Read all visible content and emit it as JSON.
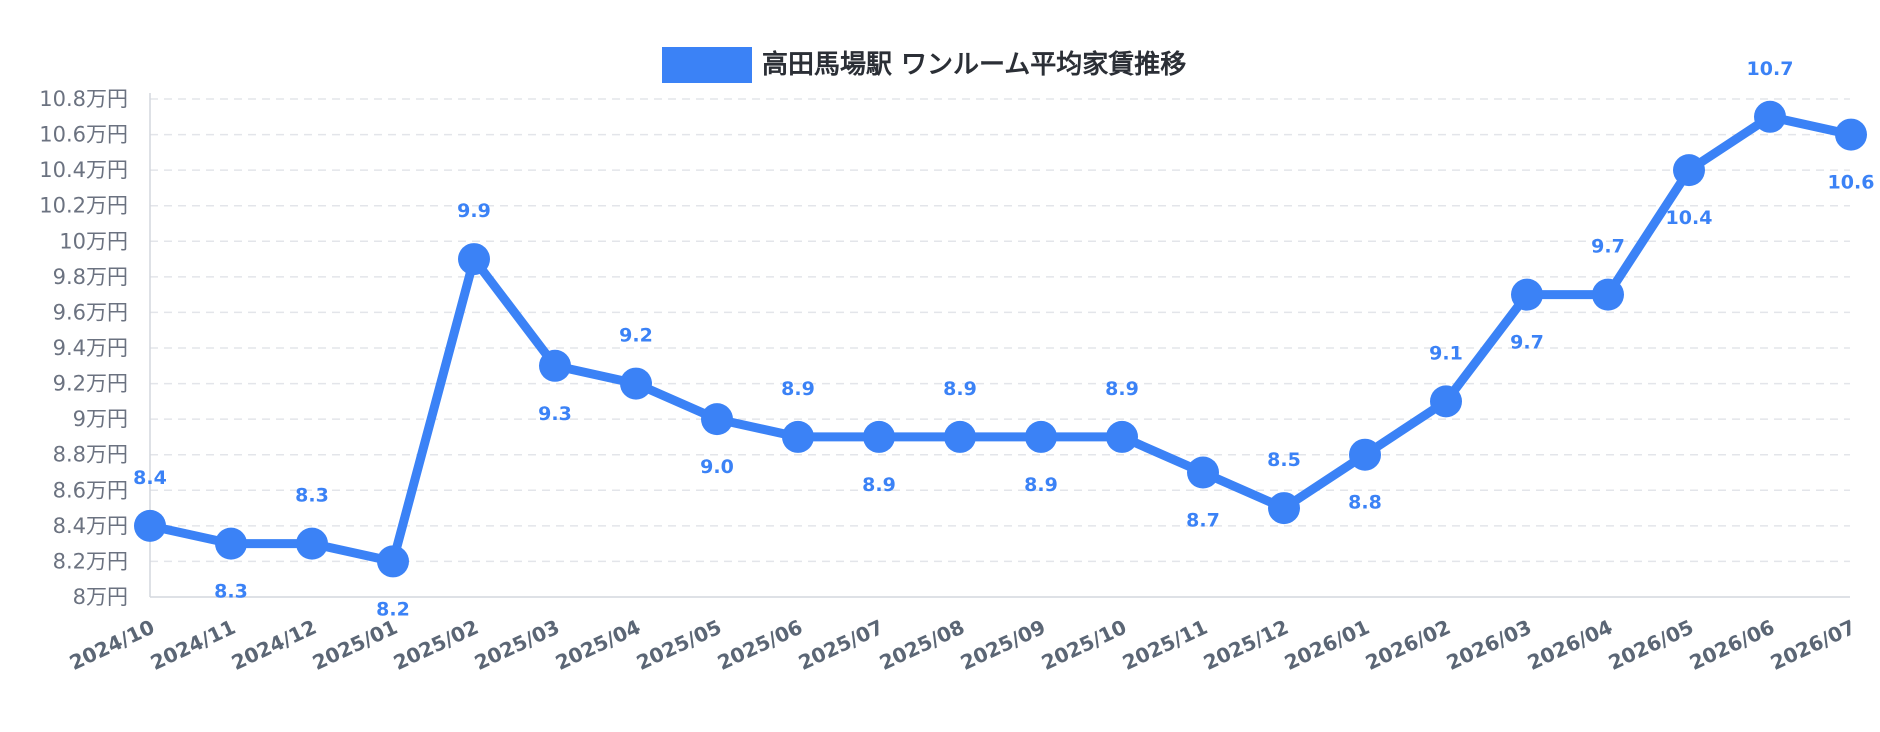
{
  "chart_data": {
    "type": "line",
    "categories": [
      "2024/10",
      "2024/11",
      "2024/12",
      "2025/01",
      "2025/02",
      "2025/03",
      "2025/04",
      "2025/05",
      "2025/06",
      "2025/07",
      "2025/08",
      "2025/09",
      "2025/10",
      "2025/11",
      "2025/12",
      "2026/01",
      "2026/02",
      "2026/03",
      "2026/04",
      "2026/05",
      "2026/06",
      "2026/07"
    ],
    "series": [
      {
        "name": "高田馬場駅 ワンルーム平均家賃推移",
        "values": [
          8.4,
          8.3,
          8.3,
          8.2,
          9.9,
          9.3,
          9.2,
          9.0,
          8.9,
          8.9,
          8.9,
          8.9,
          8.9,
          8.7,
          8.5,
          8.8,
          9.1,
          9.7,
          9.7,
          10.4,
          10.7,
          10.6
        ],
        "data_labels": [
          "8.4",
          "8.3",
          "8.3",
          "8.2",
          "9.9",
          "9.3",
          "9.2",
          "9.0",
          "8.9",
          "8.9",
          "8.9",
          "8.9",
          "8.9",
          "8.7",
          "8.5",
          "8.8",
          "9.1",
          "9.7",
          "9.7",
          "10.4",
          "10.7",
          "10.6"
        ],
        "color": "#3b82f6"
      }
    ],
    "ylim": [
      8,
      10.8
    ],
    "yticks": [
      8,
      8.2,
      8.4,
      8.6,
      8.8,
      9,
      9.2,
      9.4,
      9.6,
      9.8,
      10,
      10.2,
      10.4,
      10.6,
      10.8
    ],
    "ytick_labels": [
      "8万円",
      "8.2万円",
      "8.4万円",
      "8.6万円",
      "8.8万円",
      "9万円",
      "9.2万円",
      "9.4万円",
      "9.6万円",
      "9.8万円",
      "10万円",
      "10.2万円",
      "10.4万円",
      "10.6万円",
      "10.8万円"
    ],
    "legend_position": "top-center",
    "grid": true,
    "title": "",
    "xlabel": "",
    "ylabel": ""
  }
}
